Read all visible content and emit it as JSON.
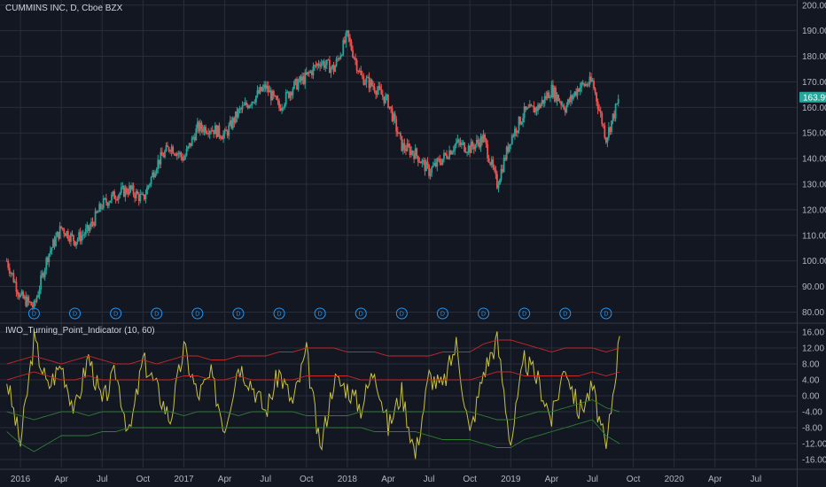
{
  "chart_data": [
    {
      "type": "candlestick",
      "title": "CUMMINS INC, D, Cboe BZX",
      "current_price": "163.99",
      "y_ticks": [
        "200.00",
        "190.00",
        "180.00",
        "170.00",
        "160.00",
        "150.00",
        "140.00",
        "130.00",
        "120.00",
        "110.00",
        "100.00",
        "90.00",
        "80.00"
      ],
      "ylim": [
        76,
        202
      ],
      "x_ticks": [
        "2016",
        "Apr",
        "Jul",
        "Oct",
        "2017",
        "Apr",
        "Jul",
        "Oct",
        "2018",
        "Apr",
        "Jul",
        "Oct",
        "2019",
        "Apr",
        "Jul",
        "Oct",
        "2020",
        "Apr",
        "Jul"
      ],
      "dividend_marker": "D",
      "dividends": [
        "2016-02",
        "2016-05",
        "2016-08",
        "2016-11",
        "2017-02",
        "2017-05",
        "2017-08",
        "2017-11",
        "2018-02",
        "2018-05",
        "2018-08",
        "2018-11",
        "2019-02",
        "2019-05",
        "2019-08"
      ],
      "x": [
        "2015-12",
        "2016-01",
        "2016-02",
        "2016-03",
        "2016-04",
        "2016-05",
        "2016-06",
        "2016-07",
        "2016-08",
        "2016-09",
        "2016-10",
        "2016-11",
        "2016-12",
        "2017-01",
        "2017-02",
        "2017-03",
        "2017-04",
        "2017-05",
        "2017-06",
        "2017-07",
        "2017-08",
        "2017-09",
        "2017-10",
        "2017-11",
        "2017-12",
        "2018-01",
        "2018-02",
        "2018-03",
        "2018-04",
        "2018-05",
        "2018-06",
        "2018-07",
        "2018-08",
        "2018-09",
        "2018-10",
        "2018-11",
        "2018-12",
        "2019-01",
        "2019-02",
        "2019-03",
        "2019-04",
        "2019-05",
        "2019-06",
        "2019-07",
        "2019-08",
        "2019-09"
      ],
      "close": [
        100,
        86,
        82,
        102,
        113,
        108,
        112,
        122,
        126,
        128,
        124,
        138,
        145,
        140,
        152,
        152,
        149,
        158,
        163,
        168,
        160,
        168,
        172,
        178,
        175,
        188,
        172,
        168,
        162,
        145,
        142,
        135,
        140,
        146,
        144,
        148,
        130,
        148,
        158,
        160,
        167,
        160,
        168,
        170,
        148,
        164
      ]
    },
    {
      "type": "line",
      "title": "IWO_Turning_Point_Indicator (10, 60)",
      "y_ticks": [
        "16.00",
        "12.00",
        "8.00",
        "4.00",
        "0.00",
        "-4.00",
        "-8.00",
        "-12.00",
        "-16.00"
      ],
      "ylim": [
        -18,
        18
      ],
      "series": [
        {
          "color": "#c9c23b",
          "values": [
            4,
            -12,
            14,
            2,
            8,
            -4,
            10,
            -2,
            6,
            -10,
            9,
            2,
            -6,
            12,
            0,
            5,
            -8,
            8,
            3,
            -4,
            6,
            -2,
            11,
            -14,
            4,
            2,
            -3,
            7,
            -8,
            1,
            -15,
            5,
            2,
            13,
            -10,
            6,
            14,
            -12,
            9,
            4,
            -6,
            8,
            -4,
            2,
            -14,
            15
          ]
        },
        {
          "color": "#c62828",
          "values": [
            8,
            9,
            10,
            9,
            8,
            9,
            10,
            9,
            8,
            8,
            9,
            8,
            9,
            10,
            10,
            9,
            9,
            10,
            10,
            10,
            11,
            11,
            12,
            12,
            12,
            11,
            11,
            11,
            10,
            10,
            10,
            10,
            11,
            11,
            11,
            13,
            14,
            14,
            13,
            12,
            11,
            12,
            12,
            12,
            11,
            12
          ]
        },
        {
          "color": "#c62828",
          "values": [
            4,
            5,
            6,
            5,
            4,
            4,
            5,
            4,
            4,
            4,
            4,
            4,
            4,
            5,
            5,
            4,
            4,
            5,
            4,
            4,
            4,
            4,
            5,
            5,
            5,
            5,
            4,
            4,
            4,
            4,
            4,
            4,
            4,
            4,
            4,
            5,
            6,
            6,
            5,
            5,
            5,
            5,
            5,
            6,
            5,
            6
          ]
        },
        {
          "color": "#2e7d32",
          "values": [
            -4,
            -5,
            -6,
            -5,
            -4,
            -4,
            -5,
            -4,
            -4,
            -4,
            -4,
            -4,
            -4,
            -5,
            -4,
            -4,
            -4,
            -5,
            -4,
            -4,
            -4,
            -4,
            -5,
            -5,
            -5,
            -5,
            -4,
            -4,
            -4,
            -4,
            -4,
            -4,
            -4,
            -4,
            -4,
            -5,
            -6,
            -6,
            -5,
            -4,
            -4,
            -3,
            -2,
            -1,
            -3,
            -4
          ]
        },
        {
          "color": "#2e7d32",
          "values": [
            -9,
            -12,
            -14,
            -12,
            -10,
            -10,
            -10,
            -9,
            -9,
            -8,
            -8,
            -8,
            -8,
            -8,
            -8,
            -8,
            -8,
            -8,
            -8,
            -8,
            -8,
            -8,
            -8,
            -8,
            -8,
            -8,
            -8,
            -9,
            -9,
            -9,
            -9,
            -10,
            -11,
            -11,
            -11,
            -12,
            -13,
            -13,
            -11,
            -10,
            -9,
            -8,
            -7,
            -6,
            -10,
            -12
          ]
        }
      ]
    }
  ]
}
